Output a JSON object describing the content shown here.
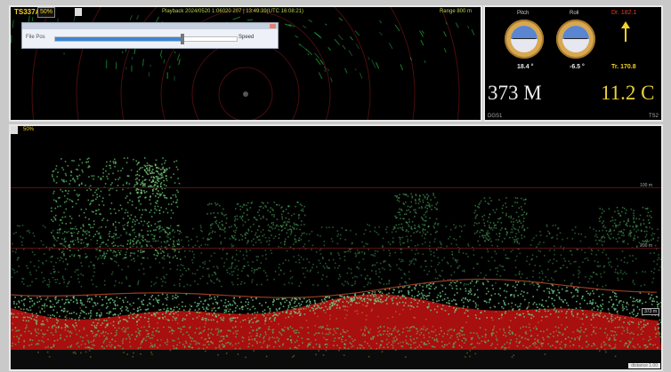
{
  "sonar": {
    "model": "TS337A",
    "percent": "50%",
    "status_text": "Playback  2024/0520 1:06020 207 |  13:49:39(UTC 16:08:21)",
    "range_text": "Range  800 m"
  },
  "player": {
    "file_label": "File Pos",
    "speed_label": "Speed",
    "position_fraction": 0.7
  },
  "sensors": {
    "pitch_label": "Pitch",
    "roll_label": "Roll",
    "pitch_value": "18.4  °",
    "roll_value": "-6.5  °",
    "direction_label": "Dr. 182.1",
    "t_value": "Tr. 170.8",
    "depth_value": "373 M",
    "temp_value": "11.2 C",
    "depth_source": "DGS1",
    "temp_source": "TS2"
  },
  "echogram": {
    "percent": "50%",
    "depth_labels": [
      "100 m",
      "200 m"
    ],
    "current_depth_box": "373 m",
    "corner_text": "distance  1.00"
  },
  "colors": {
    "panel_bg": "#000000",
    "accent_yellow": "#f2d22a",
    "echo_red": "#b51010",
    "echo_green": "#3fb35a"
  }
}
